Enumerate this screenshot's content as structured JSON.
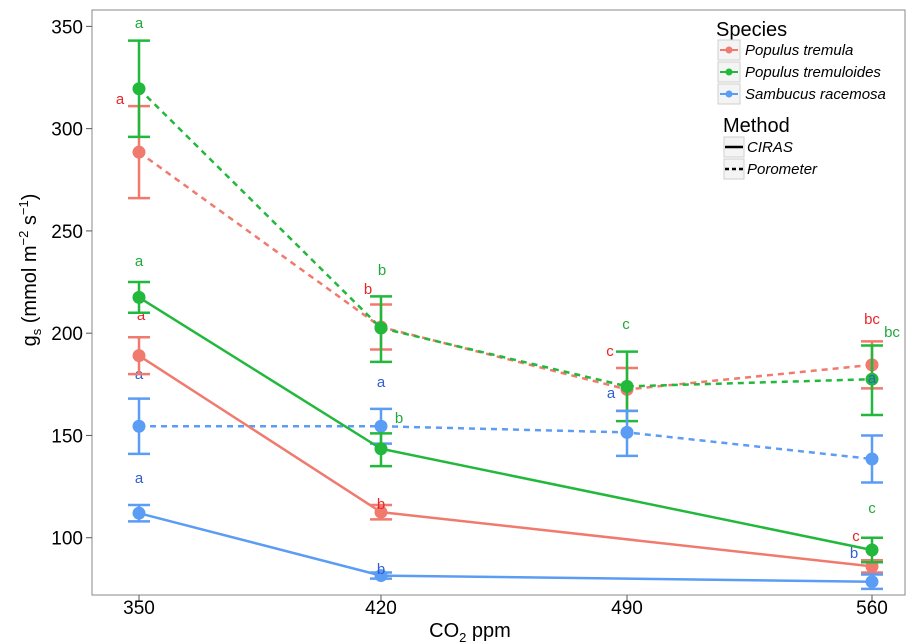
{
  "chart_data": {
    "type": "line",
    "xlabel_main": "CO",
    "xlabel_sub": "2",
    "xlabel_tail": " ppm",
    "ylabel": {
      "g": "g",
      "s": "s",
      "mid": " (mmol m",
      "sup1": "−2",
      "mid2": " s",
      "sup2": "−1",
      "end": ")"
    },
    "x_categories": [
      "350",
      "420",
      "490",
      "560"
    ],
    "yticks": [
      "100",
      "150",
      "200",
      "250",
      "300",
      "350"
    ],
    "ylim": [
      72,
      358
    ],
    "legend_species_title": "Species",
    "legend_method_title": "Method",
    "species": [
      {
        "name": "Populus tremula",
        "color": "#f07a6e"
      },
      {
        "name": "Populus tremuloides",
        "color": "#22b83c"
      },
      {
        "name": "Sambucus racemosa",
        "color": "#5b9cf5"
      }
    ],
    "methods": [
      {
        "name": "CIRAS",
        "dash": "solid"
      },
      {
        "name": "Porometer",
        "dash": "dashed"
      }
    ],
    "series": [
      {
        "species": 0,
        "method": "CIRAS",
        "points": [
          {
            "x": "350",
            "y": 189,
            "lo": 180,
            "hi": 198,
            "letter": "a"
          },
          {
            "x": "420",
            "y": 112.5,
            "lo": 109,
            "hi": 116,
            "letter": "b"
          },
          {
            "x": "560",
            "y": 86,
            "lo": 83,
            "hi": 89,
            "letter": "c"
          }
        ]
      },
      {
        "species": 1,
        "method": "CIRAS",
        "points": [
          {
            "x": "350",
            "y": 217.5,
            "lo": 210,
            "hi": 225,
            "letter": "a"
          },
          {
            "x": "420",
            "y": 143.5,
            "lo": 135,
            "hi": 151,
            "letter": "b"
          },
          {
            "x": "560",
            "y": 94,
            "lo": 88,
            "hi": 100,
            "letter": "c"
          }
        ]
      },
      {
        "species": 2,
        "method": "CIRAS",
        "points": [
          {
            "x": "350",
            "y": 112,
            "lo": 108,
            "hi": 116,
            "letter": "a"
          },
          {
            "x": "420",
            "y": 81.5,
            "lo": 80,
            "hi": 83,
            "letter": "b"
          },
          {
            "x": "560",
            "y": 78.5,
            "lo": 75,
            "hi": 82,
            "letter": "b"
          }
        ]
      },
      {
        "species": 0,
        "method": "Porometer",
        "points": [
          {
            "x": "350",
            "y": 288.5,
            "lo": 266,
            "hi": 311,
            "letter": "a"
          },
          {
            "x": "420",
            "y": 203,
            "lo": 192,
            "hi": 214,
            "letter": "b"
          },
          {
            "x": "490",
            "y": 172.5,
            "lo": 162,
            "hi": 183,
            "letter": "c"
          },
          {
            "x": "560",
            "y": 184.5,
            "lo": 173,
            "hi": 196,
            "letter": "bc"
          }
        ]
      },
      {
        "species": 1,
        "method": "Porometer",
        "points": [
          {
            "x": "350",
            "y": 319.5,
            "lo": 296,
            "hi": 343,
            "letter": "a"
          },
          {
            "x": "420",
            "y": 202.5,
            "lo": 186,
            "hi": 218,
            "letter": "b"
          },
          {
            "x": "490",
            "y": 174,
            "lo": 157,
            "hi": 191,
            "letter": "c"
          },
          {
            "x": "560",
            "y": 177.5,
            "lo": 160,
            "hi": 194,
            "letter": "bc"
          }
        ]
      },
      {
        "species": 2,
        "method": "Porometer",
        "points": [
          {
            "x": "350",
            "y": 154.5,
            "lo": 141,
            "hi": 168,
            "letter": "a"
          },
          {
            "x": "420",
            "y": 154.5,
            "lo": 146,
            "hi": 163,
            "letter": "a"
          },
          {
            "x": "490",
            "y": 151.5,
            "lo": 140,
            "hi": 162,
            "letter": "a"
          },
          {
            "x": "560",
            "y": 138.5,
            "lo": 127,
            "hi": 150,
            "letter": "a"
          }
        ]
      }
    ]
  }
}
